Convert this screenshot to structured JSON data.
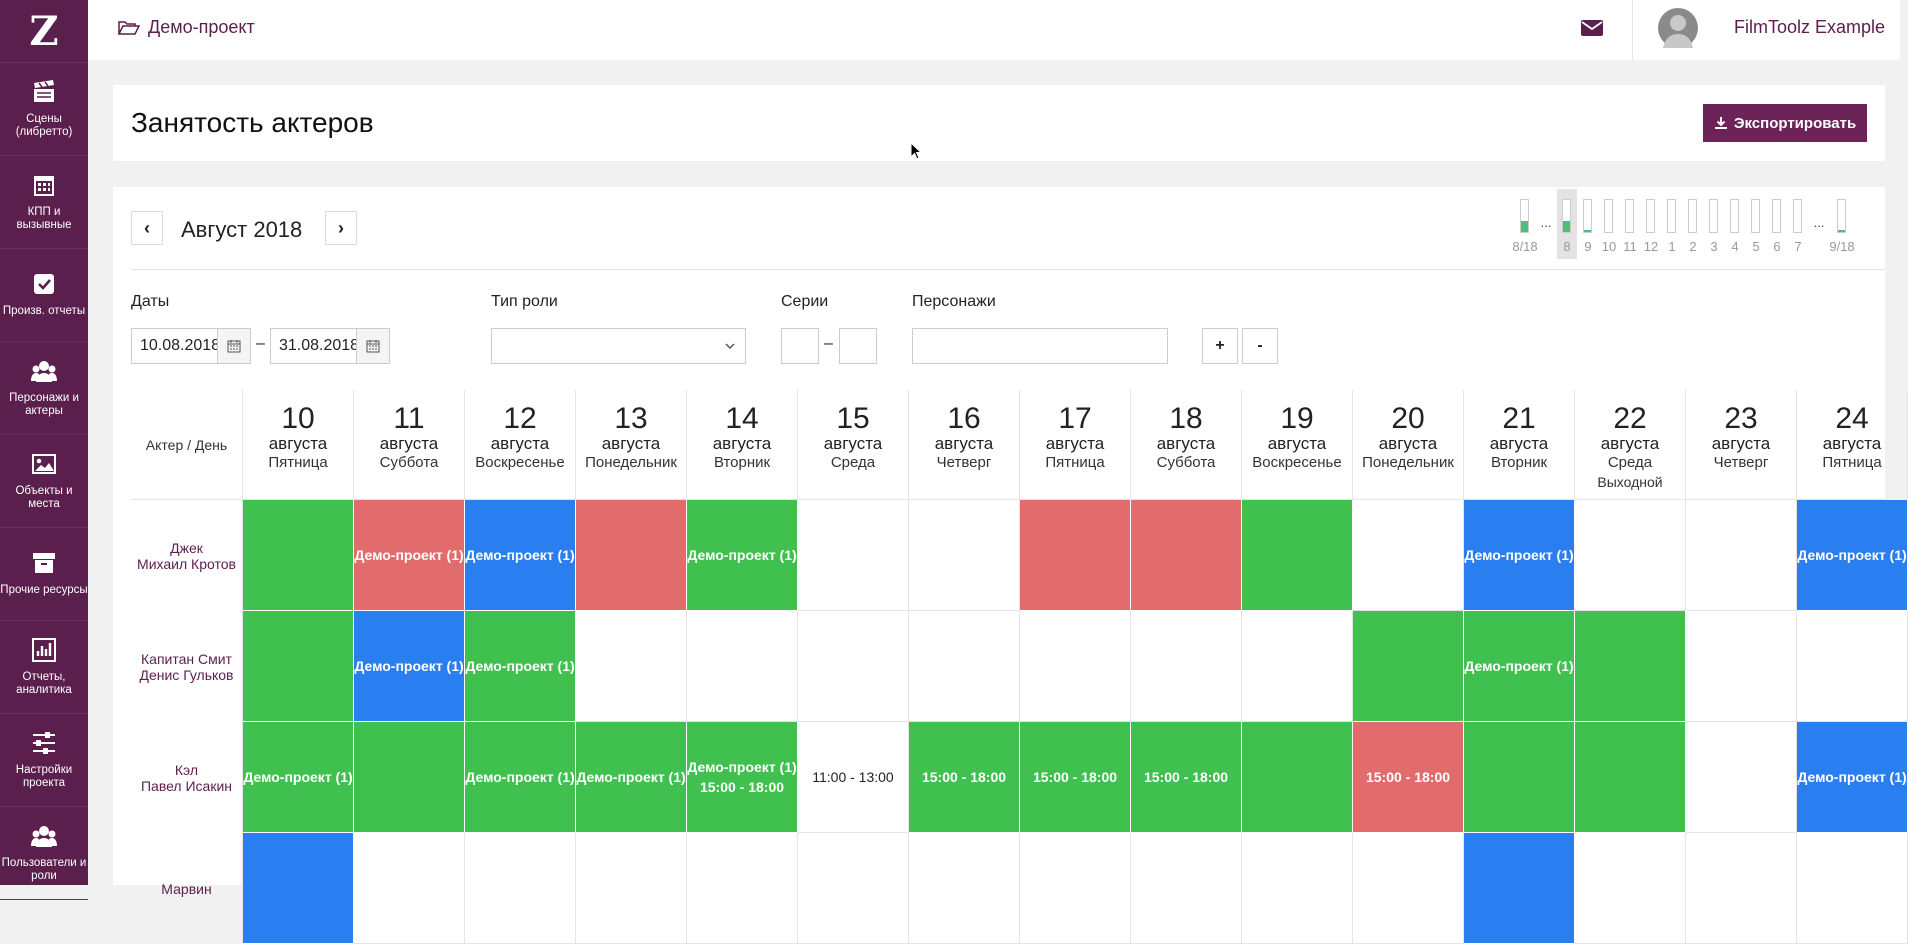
{
  "app": {
    "logo": "Z"
  },
  "sidebar": {
    "items": [
      {
        "label": "Сцены (либретто)",
        "icon": "clapperboard-icon"
      },
      {
        "label": "КПП и вызывные",
        "icon": "calendar-icon"
      },
      {
        "label": "Произв. отчеты",
        "icon": "checkbox-icon"
      },
      {
        "label": "Персонажи и актеры",
        "icon": "users-icon"
      },
      {
        "label": "Объекты и места",
        "icon": "image-icon"
      },
      {
        "label": "Прочие ресурсы",
        "icon": "archive-icon"
      },
      {
        "label": "Отчеты, аналитика",
        "icon": "bar-chart-icon"
      },
      {
        "label": "Настройки проекта",
        "icon": "sliders-icon"
      },
      {
        "label": "Пользователи и роли",
        "icon": "users-icon"
      }
    ]
  },
  "topbar": {
    "project": "Демо-проект",
    "user": "FilmToolz Example"
  },
  "page": {
    "title": "Занятость актеров",
    "export_label": "Экспортировать"
  },
  "calendar": {
    "prev": "‹",
    "next": "›",
    "month": "Август 2018"
  },
  "series_strip": [
    {
      "label": "8/18",
      "fill": 0.35,
      "active": false
    },
    {
      "label": "...",
      "fill": null,
      "active": false
    },
    {
      "label": "8",
      "fill": 0.35,
      "active": true
    },
    {
      "label": "9",
      "fill": 0.05,
      "active": false
    },
    {
      "label": "10",
      "fill": 0,
      "active": false
    },
    {
      "label": "11",
      "fill": 0,
      "active": false
    },
    {
      "label": "12",
      "fill": 0,
      "active": false
    },
    {
      "label": "1",
      "fill": 0,
      "active": false
    },
    {
      "label": "2",
      "fill": 0,
      "active": false
    },
    {
      "label": "3",
      "fill": 0,
      "active": false
    },
    {
      "label": "4",
      "fill": 0,
      "active": false
    },
    {
      "label": "5",
      "fill": 0,
      "active": false
    },
    {
      "label": "6",
      "fill": 0,
      "active": false
    },
    {
      "label": "7",
      "fill": 0,
      "active": false
    },
    {
      "label": "...",
      "fill": null,
      "active": false
    },
    {
      "label": "9/18",
      "fill": 0.05,
      "active": false
    }
  ],
  "filters": {
    "dates_label": "Даты",
    "date_from": "10.08.2018",
    "date_to": "31.08.2018",
    "dash": "–",
    "role_type_label": "Тип роли",
    "role_type_value": "",
    "series_label": "Серии",
    "series_from": "",
    "series_to": "",
    "characters_label": "Персонажи",
    "characters_value": "",
    "plus": "+",
    "minus": "-"
  },
  "grid": {
    "corner": "Актер / День",
    "days": [
      {
        "num": "10",
        "month": "августа",
        "weekday": "Пятница",
        "note": ""
      },
      {
        "num": "11",
        "month": "августа",
        "weekday": "Суббота",
        "note": ""
      },
      {
        "num": "12",
        "month": "августа",
        "weekday": "Воскресенье",
        "note": ""
      },
      {
        "num": "13",
        "month": "августа",
        "weekday": "Понедельник",
        "note": ""
      },
      {
        "num": "14",
        "month": "августа",
        "weekday": "Вторник",
        "note": ""
      },
      {
        "num": "15",
        "month": "августа",
        "weekday": "Среда",
        "note": ""
      },
      {
        "num": "16",
        "month": "августа",
        "weekday": "Четверг",
        "note": ""
      },
      {
        "num": "17",
        "month": "августа",
        "weekday": "Пятница",
        "note": ""
      },
      {
        "num": "18",
        "month": "августа",
        "weekday": "Суббота",
        "note": ""
      },
      {
        "num": "19",
        "month": "августа",
        "weekday": "Воскресенье",
        "note": ""
      },
      {
        "num": "20",
        "month": "августа",
        "weekday": "Понедельник",
        "note": ""
      },
      {
        "num": "21",
        "month": "августа",
        "weekday": "Вторник",
        "note": ""
      },
      {
        "num": "22",
        "month": "августа",
        "weekday": "Среда",
        "note": "Выходной"
      },
      {
        "num": "23",
        "month": "августа",
        "weekday": "Четверг",
        "note": ""
      },
      {
        "num": "24",
        "month": "августа",
        "weekday": "Пятница",
        "note": ""
      }
    ],
    "actors": [
      {
        "role": "Джек",
        "name": "Михаил Кротов",
        "cells": [
          {
            "color": "green",
            "lines": []
          },
          {
            "color": "red",
            "lines": [
              "Демо-проект (1)"
            ]
          },
          {
            "color": "blue",
            "lines": [
              "Демо-проект (1)"
            ]
          },
          {
            "color": "red",
            "lines": []
          },
          {
            "color": "green",
            "lines": [
              "Демо-проект (1)"
            ]
          },
          {
            "color": "white",
            "lines": []
          },
          {
            "color": "white",
            "lines": []
          },
          {
            "color": "red",
            "lines": []
          },
          {
            "color": "red",
            "lines": []
          },
          {
            "color": "green",
            "lines": []
          },
          {
            "color": "white",
            "lines": []
          },
          {
            "color": "blue",
            "lines": [
              "Демо-проект (1)"
            ]
          },
          {
            "color": "white",
            "lines": []
          },
          {
            "color": "white",
            "lines": []
          },
          {
            "color": "blue",
            "lines": [
              "Демо-проект (1)"
            ]
          }
        ]
      },
      {
        "role": "Капитан Смит",
        "name": "Денис Гульков",
        "cells": [
          {
            "color": "green",
            "lines": []
          },
          {
            "color": "blue",
            "lines": [
              "Демо-проект (1)"
            ]
          },
          {
            "color": "green",
            "lines": [
              "Демо-проект (1)"
            ]
          },
          {
            "color": "white",
            "lines": []
          },
          {
            "color": "white",
            "lines": []
          },
          {
            "color": "white",
            "lines": []
          },
          {
            "color": "white",
            "lines": []
          },
          {
            "color": "white",
            "lines": []
          },
          {
            "color": "white",
            "lines": []
          },
          {
            "color": "white",
            "lines": []
          },
          {
            "color": "green",
            "lines": []
          },
          {
            "color": "green",
            "lines": [
              "Демо-проект (1)"
            ]
          },
          {
            "color": "green",
            "lines": []
          },
          {
            "color": "white",
            "lines": []
          },
          {
            "color": "white",
            "lines": []
          }
        ]
      },
      {
        "role": "Кэл",
        "name": "Павел Исакин",
        "cells": [
          {
            "color": "green",
            "lines": [
              "Демо-проект (1)"
            ]
          },
          {
            "color": "green",
            "lines": []
          },
          {
            "color": "green",
            "lines": [
              "Демо-проект (1)"
            ]
          },
          {
            "color": "green",
            "lines": [
              "Демо-проект (1)"
            ]
          },
          {
            "color": "green",
            "lines": [
              "Демо-проект (1)",
              "15:00 - 18:00"
            ]
          },
          {
            "color": "white",
            "lines": [
              "11:00 - 13:00"
            ]
          },
          {
            "color": "green",
            "lines": [
              "15:00 - 18:00"
            ]
          },
          {
            "color": "green",
            "lines": [
              "15:00 - 18:00"
            ]
          },
          {
            "color": "green",
            "lines": [
              "15:00 - 18:00"
            ]
          },
          {
            "color": "green",
            "lines": []
          },
          {
            "color": "red",
            "lines": [
              "15:00 - 18:00"
            ]
          },
          {
            "color": "green",
            "lines": []
          },
          {
            "color": "green",
            "lines": []
          },
          {
            "color": "white",
            "lines": []
          },
          {
            "color": "blue",
            "lines": [
              "Демо-проект (1)"
            ]
          }
        ]
      },
      {
        "role": "Марвин",
        "name": "",
        "cells": [
          {
            "color": "blue",
            "lines": []
          },
          {
            "color": "white",
            "lines": []
          },
          {
            "color": "white",
            "lines": []
          },
          {
            "color": "white",
            "lines": []
          },
          {
            "color": "white",
            "lines": []
          },
          {
            "color": "white",
            "lines": []
          },
          {
            "color": "white",
            "lines": []
          },
          {
            "color": "white",
            "lines": []
          },
          {
            "color": "white",
            "lines": []
          },
          {
            "color": "white",
            "lines": []
          },
          {
            "color": "white",
            "lines": []
          },
          {
            "color": "blue",
            "lines": []
          },
          {
            "color": "white",
            "lines": []
          },
          {
            "color": "white",
            "lines": []
          },
          {
            "color": "white",
            "lines": []
          }
        ]
      }
    ]
  }
}
